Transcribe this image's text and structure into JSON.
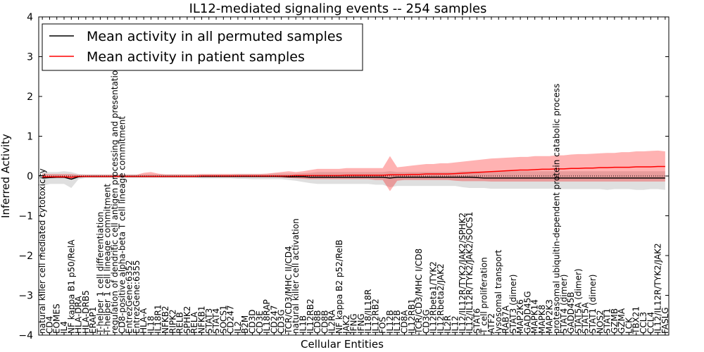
{
  "chart_data": {
    "type": "line",
    "title": "IL12-mediated signaling events -- 254 samples",
    "xlabel": "Cellular Entities",
    "ylabel": "Inferred Activity",
    "ylim": [
      -4,
      4
    ],
    "yticks": [
      -4,
      -3,
      -2,
      -1,
      0,
      1,
      2,
      3,
      4
    ],
    "grid": false,
    "legend_position": "top-left",
    "categories": [
      "natural killer cell mediated cytotoxicity",
      "CD4",
      "EOMES",
      "IL4",
      "NF kappa B1 p50/RelA",
      "HLA-DRA",
      "HLA-DRB5",
      "ERAP1",
      "T-helper 1 cell differentiation",
      "T-helper 1 cell lineage commitment",
      "regulation of dendritic cell antigen processing and presentation",
      "CD8-positive alpha-beta T cell lineage commitment",
      "EntrezGene:6352",
      "EntrezGene:6355",
      "HLA-A",
      "IL18",
      "IL18R1",
      "NFKB2",
      "RIPK2",
      "RELB",
      "SPHK2",
      "RELA",
      "NFKB1",
      "STAT3",
      "STAT4",
      "SOCS1",
      "CD247",
      "IL2",
      "B2M",
      "CD3D",
      "CD3E",
      "IL18RAP",
      "CD247",
      "CD3G",
      "TCR/CD3/MHC II/CD4",
      "natural killer cell activation",
      "IL1B",
      "IL12RB2",
      "CD8B",
      "CD8B",
      "IL2RA",
      "NF kappa B2 p52/RelB",
      "JAK2",
      "IFNG",
      "IFNG",
      "IL18/IL18R",
      "IL12RB2",
      "FOS",
      "IL12B",
      "IL12B",
      "CD8A",
      "IL12RB1",
      "TCR/CD3/MHC I/CD8",
      "CD3G",
      "IL12Rbeta1/TYK2",
      "IL12Rbeta2/JAK2",
      "IL2R",
      "IL12",
      "IL12/IL12R/TYK2/JAK2/SPHK2",
      "IL12/IL12R/TYK2/JAK2/SOCS1",
      "STAT6",
      "T cell proliferation",
      "ATF2",
      "lysosomal transport",
      "RAB7A",
      "STAT3 (dimer)",
      "MAP2K6",
      "GADD45G",
      "MAPK14",
      "MAPK8",
      "MAP2K3",
      "proteasomal ubiquitin-dependent protein catabolic process",
      "STAT4 (dimer)",
      "GADD45B",
      "STAT5A (dimer)",
      "STAT5A",
      "STAT1 (dimer)",
      "NOS2",
      "STAT1",
      "GZMB",
      "GZMA",
      "LCK",
      "TBX21",
      "CCL3",
      "CCL4",
      "IL12/IL12R/TYK2/JAK2",
      "FASLG"
    ],
    "series": [
      {
        "name": "Mean activity in all permuted samples",
        "color": "#000000",
        "values": [
          -0.05,
          -0.04,
          -0.03,
          -0.03,
          -0.08,
          -0.02,
          -0.01,
          -0.01,
          -0.01,
          -0.01,
          -0.01,
          -0.01,
          -0.01,
          -0.01,
          -0.01,
          -0.01,
          -0.01,
          -0.01,
          -0.01,
          -0.01,
          -0.01,
          -0.01,
          -0.01,
          -0.01,
          -0.01,
          -0.01,
          -0.01,
          -0.01,
          -0.01,
          -0.01,
          -0.01,
          -0.01,
          -0.01,
          -0.01,
          -0.02,
          -0.02,
          -0.02,
          -0.03,
          -0.03,
          -0.03,
          -0.03,
          -0.03,
          -0.03,
          -0.03,
          -0.03,
          -0.03,
          -0.03,
          -0.03,
          -0.05,
          -0.03,
          -0.03,
          -0.03,
          -0.03,
          -0.03,
          -0.03,
          -0.03,
          -0.03,
          -0.03,
          -0.03,
          -0.03,
          -0.04,
          -0.05,
          -0.05,
          -0.05,
          -0.05,
          -0.05,
          -0.05,
          -0.05,
          -0.05,
          -0.05,
          -0.05,
          -0.05,
          -0.05,
          -0.05,
          -0.05,
          -0.05,
          -0.05,
          -0.05,
          -0.05,
          -0.05,
          -0.05,
          -0.05,
          -0.05,
          -0.05,
          -0.05,
          -0.05,
          -0.05
        ],
        "band_low": [
          -0.25,
          -0.2,
          -0.2,
          -0.2,
          -0.3,
          -0.08,
          -0.05,
          -0.05,
          -0.05,
          -0.05,
          -0.05,
          -0.05,
          -0.05,
          -0.05,
          -0.05,
          -0.05,
          -0.05,
          -0.05,
          -0.05,
          -0.05,
          -0.05,
          -0.05,
          -0.06,
          -0.06,
          -0.06,
          -0.06,
          -0.06,
          -0.07,
          -0.07,
          -0.08,
          -0.08,
          -0.08,
          -0.08,
          -0.08,
          -0.1,
          -0.12,
          -0.15,
          -0.18,
          -0.2,
          -0.2,
          -0.2,
          -0.2,
          -0.2,
          -0.2,
          -0.2,
          -0.2,
          -0.22,
          -0.22,
          -0.28,
          -0.25,
          -0.25,
          -0.25,
          -0.25,
          -0.25,
          -0.25,
          -0.25,
          -0.25,
          -0.25,
          -0.28,
          -0.3,
          -0.3,
          -0.3,
          -0.32,
          -0.32,
          -0.32,
          -0.32,
          -0.32,
          -0.32,
          -0.32,
          -0.32,
          -0.32,
          -0.32,
          -0.33,
          -0.33,
          -0.33,
          -0.33,
          -0.33,
          -0.33,
          -0.35,
          -0.33,
          -0.33,
          -0.33,
          -0.35,
          -0.35,
          -0.33,
          -0.33,
          -0.35
        ],
        "band_high": [
          0.12,
          0.1,
          0.1,
          0.12,
          0.1,
          0.05,
          0.04,
          0.04,
          0.04,
          0.04,
          0.04,
          0.04,
          0.04,
          0.04,
          0.04,
          0.04,
          0.04,
          0.04,
          0.04,
          0.04,
          0.04,
          0.04,
          0.04,
          0.04,
          0.04,
          0.04,
          0.04,
          0.05,
          0.05,
          0.05,
          0.05,
          0.05,
          0.06,
          0.06,
          0.06,
          0.06,
          0.07,
          0.08,
          0.1,
          0.1,
          0.1,
          0.1,
          0.1,
          0.1,
          0.1,
          0.1,
          0.1,
          0.1,
          0.12,
          0.1,
          0.1,
          0.1,
          0.1,
          0.1,
          0.1,
          0.1,
          0.1,
          0.1,
          0.12,
          0.12,
          0.12,
          0.12,
          0.12,
          0.12,
          0.12,
          0.12,
          0.12,
          0.12,
          0.12,
          0.12,
          0.12,
          0.12,
          0.12,
          0.12,
          0.12,
          0.12,
          0.12,
          0.12,
          0.12,
          0.12,
          0.12,
          0.12,
          0.12,
          0.12,
          0.12,
          0.12,
          0.12
        ]
      },
      {
        "name": "Mean activity in patient samples",
        "color": "#ff0000",
        "values": [
          -0.02,
          -0.02,
          -0.02,
          -0.02,
          -0.03,
          -0.01,
          -0.01,
          -0.01,
          -0.01,
          -0.01,
          -0.01,
          -0.01,
          -0.01,
          -0.01,
          -0.01,
          -0.01,
          -0.01,
          -0.01,
          -0.01,
          -0.01,
          -0.01,
          -0.01,
          0.0,
          0.0,
          0.0,
          0.0,
          0.0,
          0.0,
          0.0,
          0.0,
          0.0,
          0.0,
          0.0,
          0.0,
          0.0,
          0.01,
          0.01,
          0.01,
          0.01,
          0.01,
          0.01,
          0.01,
          0.02,
          0.02,
          0.02,
          0.02,
          0.02,
          0.02,
          0.03,
          0.03,
          0.03,
          0.04,
          0.04,
          0.05,
          0.05,
          0.05,
          0.05,
          0.06,
          0.07,
          0.08,
          0.09,
          0.1,
          0.11,
          0.12,
          0.13,
          0.14,
          0.15,
          0.15,
          0.16,
          0.17,
          0.17,
          0.18,
          0.18,
          0.19,
          0.19,
          0.2,
          0.2,
          0.21,
          0.21,
          0.22,
          0.22,
          0.22,
          0.23,
          0.23,
          0.23,
          0.24,
          0.24
        ],
        "band_low": [
          -0.06,
          -0.05,
          -0.05,
          -0.05,
          -0.08,
          -0.03,
          -0.03,
          -0.03,
          -0.03,
          -0.03,
          -0.03,
          -0.03,
          -0.03,
          -0.03,
          -0.03,
          -0.03,
          -0.03,
          -0.03,
          -0.03,
          -0.03,
          -0.03,
          -0.03,
          -0.03,
          -0.03,
          -0.03,
          -0.03,
          -0.03,
          -0.03,
          -0.03,
          -0.03,
          -0.03,
          -0.03,
          -0.03,
          -0.04,
          -0.05,
          -0.06,
          -0.07,
          -0.08,
          -0.08,
          -0.08,
          -0.08,
          -0.08,
          -0.08,
          -0.08,
          -0.08,
          -0.08,
          -0.1,
          -0.1,
          -0.38,
          -0.12,
          -0.1,
          -0.1,
          -0.1,
          -0.1,
          -0.1,
          -0.1,
          -0.1,
          -0.12,
          -0.13,
          -0.13,
          -0.13,
          -0.13,
          -0.14,
          -0.14,
          -0.14,
          -0.14,
          -0.14,
          -0.14,
          -0.14,
          -0.14,
          -0.14,
          -0.14,
          -0.14,
          -0.14,
          -0.14,
          -0.14,
          -0.14,
          -0.14,
          -0.14,
          -0.14,
          -0.14,
          -0.14,
          -0.14,
          -0.14,
          -0.14,
          -0.14,
          -0.14
        ],
        "band_high": [
          0.06,
          0.05,
          0.05,
          0.05,
          0.05,
          0.03,
          0.03,
          0.03,
          0.03,
          0.03,
          0.03,
          0.03,
          0.03,
          0.03,
          0.08,
          0.1,
          0.06,
          0.04,
          0.04,
          0.04,
          0.04,
          0.04,
          0.05,
          0.05,
          0.05,
          0.05,
          0.05,
          0.05,
          0.05,
          0.05,
          0.05,
          0.06,
          0.08,
          0.1,
          0.12,
          0.1,
          0.12,
          0.15,
          0.18,
          0.18,
          0.18,
          0.18,
          0.2,
          0.2,
          0.2,
          0.2,
          0.2,
          0.2,
          0.5,
          0.22,
          0.24,
          0.26,
          0.28,
          0.3,
          0.3,
          0.32,
          0.32,
          0.34,
          0.36,
          0.38,
          0.4,
          0.42,
          0.44,
          0.45,
          0.46,
          0.47,
          0.48,
          0.48,
          0.5,
          0.5,
          0.5,
          0.52,
          0.52,
          0.54,
          0.55,
          0.55,
          0.56,
          0.57,
          0.58,
          0.58,
          0.6,
          0.6,
          0.62,
          0.62,
          0.63,
          0.64,
          0.62
        ]
      }
    ]
  }
}
